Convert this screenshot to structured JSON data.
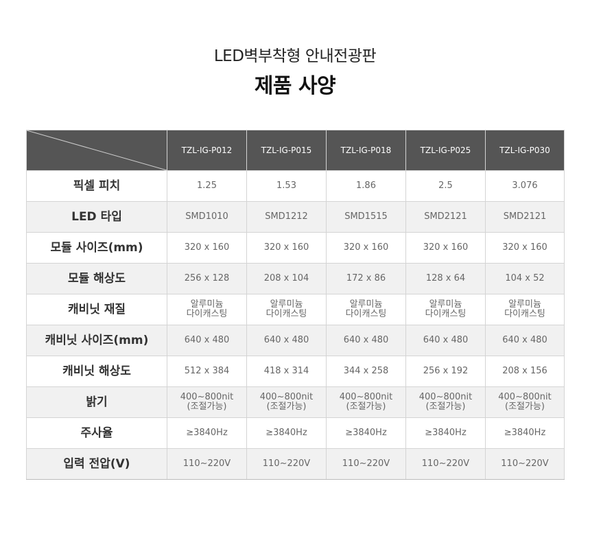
{
  "header": {
    "subtitle": "LED벽부착형 안내전광판",
    "title": "제품 사양"
  },
  "table": {
    "columns": [
      "TZL-IG-P012",
      "TZL-IG-P015",
      "TZL-IG-P018",
      "TZL-IG-P025",
      "TZL-IG-P030"
    ],
    "rows": [
      {
        "label": "픽셀 피치",
        "cells": [
          [
            "1.25"
          ],
          [
            "1.53"
          ],
          [
            "1.86"
          ],
          [
            "2.5"
          ],
          [
            "3.076"
          ]
        ]
      },
      {
        "label": "LED 타입",
        "cells": [
          [
            "SMD1010"
          ],
          [
            "SMD1212"
          ],
          [
            "SMD1515"
          ],
          [
            "SMD2121"
          ],
          [
            "SMD2121"
          ]
        ]
      },
      {
        "label": "모듈 사이즈(mm)",
        "cells": [
          [
            "320 x 160"
          ],
          [
            "320 x 160"
          ],
          [
            "320 x 160"
          ],
          [
            "320 x 160"
          ],
          [
            "320 x 160"
          ]
        ]
      },
      {
        "label": "모듈 해상도",
        "cells": [
          [
            "256 x 128"
          ],
          [
            "208 x 104"
          ],
          [
            "172 x 86"
          ],
          [
            "128 x 64"
          ],
          [
            "104 x 52"
          ]
        ]
      },
      {
        "label": "캐비닛 재질",
        "cells": [
          [
            "알루미늄",
            "다이캐스팅"
          ],
          [
            "알루미늄",
            "다이캐스팅"
          ],
          [
            "알루미늄",
            "다이캐스팅"
          ],
          [
            "알루미늄",
            "다이캐스팅"
          ],
          [
            "알루미늄",
            "다이캐스팅"
          ]
        ]
      },
      {
        "label": "캐비닛 사이즈(mm)",
        "cells": [
          [
            "640 x 480"
          ],
          [
            "640 x 480"
          ],
          [
            "640 x 480"
          ],
          [
            "640 x 480"
          ],
          [
            "640 x 480"
          ]
        ]
      },
      {
        "label": "캐비닛 해상도",
        "cells": [
          [
            "512 x 384"
          ],
          [
            "418 x 314"
          ],
          [
            "344 x 258"
          ],
          [
            "256 x 192"
          ],
          [
            "208 x 156"
          ]
        ]
      },
      {
        "label": "밝기",
        "cells": [
          [
            "400~800nit",
            "(조절가능)"
          ],
          [
            "400~800nit",
            "(조절가능)"
          ],
          [
            "400~800nit",
            "(조절가능)"
          ],
          [
            "400~800nit",
            "(조절가능)"
          ],
          [
            "400~800nit",
            "(조절가능)"
          ]
        ]
      },
      {
        "label": "주사율",
        "cells": [
          [
            "≥3840Hz"
          ],
          [
            "≥3840Hz"
          ],
          [
            "≥3840Hz"
          ],
          [
            "≥3840Hz"
          ],
          [
            "≥3840Hz"
          ]
        ]
      },
      {
        "label": "입력 전압(V)",
        "cells": [
          [
            "110~220V"
          ],
          [
            "110~220V"
          ],
          [
            "110~220V"
          ],
          [
            "110~220V"
          ],
          [
            "110~220V"
          ]
        ]
      }
    ]
  },
  "colors": {
    "header_bg": "#555555",
    "alt_row_bg": "#f1f1f1",
    "border": "#d4d4d4"
  }
}
